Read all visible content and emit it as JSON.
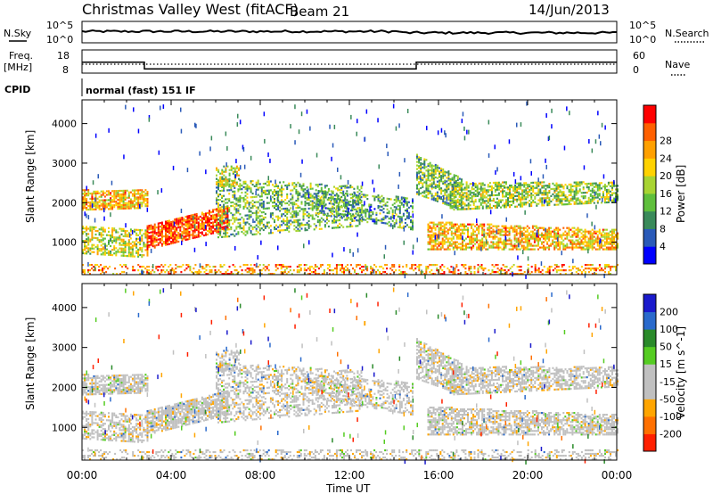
{
  "header": {
    "station": "Christmas Valley West (fitACF)",
    "beam": "Beam 21",
    "date": "14/Jun/2013"
  },
  "side_labels": {
    "nsky": "N.Sky",
    "nsearch": "N.Search",
    "freq": "Freq.",
    "freq_unit": "[MHz]",
    "nave": "Nave",
    "cpid": "CPID"
  },
  "cpid_text": "normal (fast) 151 IF",
  "noise_ticks": {
    "top": "10^5",
    "bottom": "10^0"
  },
  "freq_ticks": {
    "left": [
      "18",
      "8"
    ],
    "right": [
      "60",
      "0"
    ]
  },
  "colors": {
    "power": [
      "#0000ff",
      "#2a5ab8",
      "#3a8a5a",
      "#5fbf3c",
      "#a8d432",
      "#ffd200",
      "#ffa000",
      "#ff6000",
      "#ff0000"
    ],
    "velocity": [
      "#1a1acc",
      "#2a6acc",
      "#2a8a2a",
      "#55cc22",
      "#c0c0c0",
      "#c0c0c0",
      "#ffa500",
      "#ff7000",
      "#ff2000"
    ]
  },
  "chart_data": [
    {
      "type": "heatmap",
      "title": "",
      "quantity": "Power",
      "ylabel": "Slant Range [km]",
      "xlabel": "",
      "x_ticks": [
        "00:00",
        "04:00",
        "08:00",
        "12:00",
        "16:00",
        "20:00",
        "00:00"
      ],
      "y_ticks": [
        "1000",
        "2000",
        "3000",
        "4000"
      ],
      "ylim": [
        180,
        4600
      ],
      "xlim_hours": [
        0,
        24
      ],
      "colorbar": {
        "label": "Power [dB]",
        "ticks": [
          "4",
          "8",
          "12",
          "16",
          "20",
          "24",
          "28"
        ],
        "range": [
          0,
          30
        ]
      }
    },
    {
      "type": "heatmap",
      "title": "",
      "quantity": "Velocity",
      "ylabel": "Slant Range [km]",
      "xlabel": "Time UT",
      "x_ticks": [
        "00:00",
        "04:00",
        "08:00",
        "12:00",
        "16:00",
        "20:00",
        "00:00"
      ],
      "y_ticks": [
        "1000",
        "2000",
        "3000",
        "4000"
      ],
      "ylim": [
        180,
        4600
      ],
      "xlim_hours": [
        0,
        24
      ],
      "colorbar": {
        "label": "Velocity [m s^-1]",
        "ticks": [
          "200",
          "100",
          "50",
          "15",
          "-15",
          "-50",
          "-100",
          "-200"
        ],
        "range": [
          -250,
          250
        ]
      }
    }
  ],
  "frequency_series": {
    "hours": [
      0,
      2.8,
      2.8,
      15.0,
      15.0,
      24
    ],
    "mhz": [
      15.5,
      15.5,
      10.5,
      10.5,
      15.5,
      15.5
    ]
  }
}
